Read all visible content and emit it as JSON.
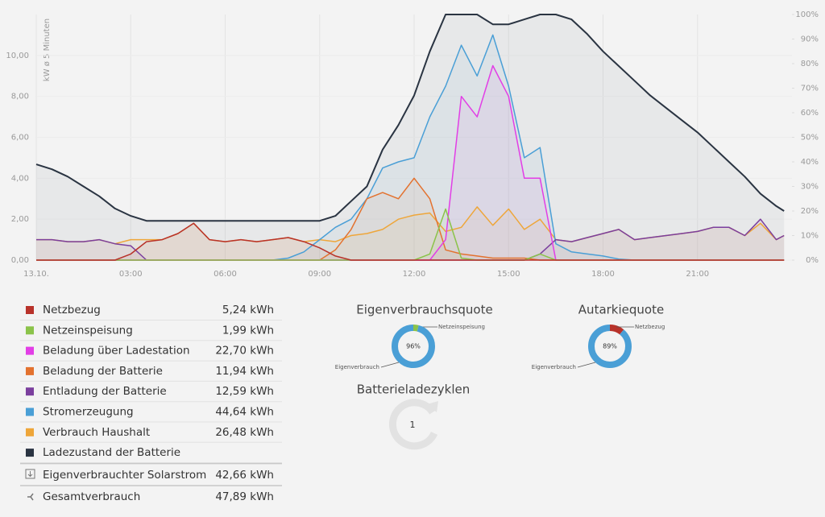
{
  "chart_data": [
    {
      "type": "line",
      "y_label": "kW ø 5 Minuten",
      "x": [
        0,
        0.5,
        1,
        1.5,
        2,
        2.5,
        3,
        3.5,
        4,
        4.5,
        5,
        5.5,
        6,
        6.5,
        7,
        7.5,
        8,
        8.5,
        9,
        9.5,
        10,
        10.5,
        11,
        11.5,
        12,
        12.5,
        13,
        13.5,
        14,
        14.5,
        15,
        15.5,
        16,
        16.5,
        17,
        17.5,
        18,
        18.5,
        19,
        19.5,
        20,
        20.5,
        21,
        21.5,
        22,
        22.5,
        23,
        23.5,
        23.75
      ],
      "xlim": [
        0,
        24
      ],
      "xticks": [
        {
          "value": 0,
          "label": "13.10."
        },
        {
          "value": 3,
          "label": "03:00"
        },
        {
          "value": 6,
          "label": "06:00"
        },
        {
          "value": 9,
          "label": "09:00"
        },
        {
          "value": 12,
          "label": "12:00"
        },
        {
          "value": 15,
          "label": "15:00"
        },
        {
          "value": 18,
          "label": "18:00"
        },
        {
          "value": 21,
          "label": "21:00"
        }
      ],
      "ylim": [
        0,
        12
      ],
      "yticks": [
        {
          "value": 0,
          "label": "0,00"
        },
        {
          "value": 2,
          "label": "2,00"
        },
        {
          "value": 4,
          "label": "4,00"
        },
        {
          "value": 6,
          "label": "6,00"
        },
        {
          "value": 8,
          "label": "8,00"
        },
        {
          "value": 10,
          "label": "10,00"
        }
      ],
      "y2lim": [
        0,
        100
      ],
      "y2ticks": [
        {
          "value": 0,
          "label": "0%"
        },
        {
          "value": 10,
          "label": "10%"
        },
        {
          "value": 20,
          "label": "20%"
        },
        {
          "value": 30,
          "label": "30%"
        },
        {
          "value": 40,
          "label": "40%"
        },
        {
          "value": 50,
          "label": "50%"
        },
        {
          "value": 60,
          "label": "60%"
        },
        {
          "value": 70,
          "label": "70%"
        },
        {
          "value": 80,
          "label": "80%"
        },
        {
          "value": 90,
          "label": "90%"
        },
        {
          "value": 100,
          "label": "100%"
        }
      ],
      "grid": true,
      "series": [
        {
          "name": "Netzbezug",
          "color": "#b8322a",
          "total": "5,24 kWh",
          "values": [
            0,
            0,
            0,
            0,
            0,
            0,
            0.3,
            0.9,
            1.0,
            1.3,
            1.8,
            1.0,
            0.9,
            1.0,
            0.9,
            1.0,
            1.1,
            0.9,
            0.6,
            0.2,
            0,
            0,
            0,
            0,
            0,
            0,
            0,
            0,
            0,
            0,
            0,
            0,
            0,
            0,
            0,
            0,
            0,
            0,
            0,
            0,
            0,
            0,
            0,
            0,
            0,
            0,
            0,
            0,
            0
          ]
        },
        {
          "name": "Netzeinspeisung",
          "color": "#8bc34a",
          "total": "1,99 kWh",
          "values": [
            0,
            0,
            0,
            0,
            0,
            0,
            0,
            0,
            0,
            0,
            0,
            0,
            0,
            0,
            0,
            0,
            0,
            0,
            0,
            0,
            0,
            0,
            0,
            0,
            0,
            0.3,
            2.5,
            0.1,
            0,
            0,
            0,
            0,
            0.3,
            0,
            0,
            0,
            0,
            0,
            0,
            0,
            0,
            0,
            0,
            0,
            0,
            0,
            0,
            0,
            0
          ]
        },
        {
          "name": "Beladung über Ladestation",
          "color": "#e23ee6",
          "total": "22,70 kWh",
          "values": [
            0,
            0,
            0,
            0,
            0,
            0,
            0,
            0,
            0,
            0,
            0,
            0,
            0,
            0,
            0,
            0,
            0,
            0,
            0,
            0,
            0,
            0,
            0,
            0,
            0,
            0,
            1.0,
            8.0,
            7.0,
            9.5,
            8.0,
            4.0,
            4.0,
            0,
            0,
            0,
            0,
            0,
            0,
            0,
            0,
            0,
            0,
            0,
            0,
            0,
            0,
            0,
            0
          ]
        },
        {
          "name": "Beladung der Batterie",
          "color": "#e3722f",
          "total": "11,94 kWh",
          "values": [
            0,
            0,
            0,
            0,
            0,
            0,
            0,
            0,
            0,
            0,
            0,
            0,
            0,
            0,
            0,
            0,
            0,
            0,
            0,
            0.5,
            1.5,
            3.0,
            3.3,
            3.0,
            4.0,
            3.0,
            0.5,
            0.3,
            0.2,
            0.1,
            0.1,
            0.1,
            0,
            0,
            0,
            0,
            0,
            0,
            0,
            0,
            0,
            0,
            0,
            0,
            0,
            0,
            0,
            0,
            0
          ]
        },
        {
          "name": "Entladung der Batterie",
          "color": "#7b3f9e",
          "total": "12,59 kWh",
          "values": [
            1.0,
            1.0,
            0.9,
            0.9,
            1.0,
            0.8,
            0.7,
            0,
            0,
            0,
            0,
            0,
            0,
            0,
            0,
            0,
            0,
            0,
            0,
            0,
            0,
            0,
            0,
            0,
            0,
            0,
            0,
            0,
            0,
            0,
            0,
            0,
            0.3,
            1.0,
            0.9,
            1.1,
            1.3,
            1.5,
            1.0,
            1.1,
            1.2,
            1.3,
            1.4,
            1.6,
            1.6,
            1.2,
            2.0,
            1.0,
            1.2
          ]
        },
        {
          "name": "Stromerzeugung",
          "color": "#4a9fd6",
          "total": "44,64 kWh",
          "values": [
            0,
            0,
            0,
            0,
            0,
            0,
            0,
            0,
            0,
            0,
            0,
            0,
            0,
            0,
            0,
            0,
            0.1,
            0.4,
            1.0,
            1.6,
            2.0,
            3.0,
            4.5,
            4.8,
            5.0,
            7.0,
            8.5,
            10.5,
            9.0,
            11.0,
            8.5,
            5.0,
            5.5,
            0.8,
            0.4,
            0.3,
            0.2,
            0.05,
            0,
            0,
            0,
            0,
            0,
            0,
            0,
            0,
            0,
            0,
            0
          ]
        },
        {
          "name": "Verbrauch Haushalt",
          "color": "#eea63a",
          "total": "26,48 kWh",
          "values": [
            1.0,
            1.0,
            0.9,
            0.9,
            1.0,
            0.8,
            1.0,
            1.0,
            1.0,
            1.3,
            1.8,
            1.0,
            0.9,
            1.0,
            0.9,
            1.0,
            1.1,
            0.9,
            1.0,
            0.9,
            1.2,
            1.3,
            1.5,
            2.0,
            2.2,
            2.3,
            1.4,
            1.6,
            2.6,
            1.7,
            2.5,
            1.5,
            2.0,
            1.0,
            0.9,
            1.1,
            1.3,
            1.5,
            1.0,
            1.1,
            1.2,
            1.3,
            1.4,
            1.6,
            1.6,
            1.2,
            1.8,
            1.0,
            1.2
          ]
        },
        {
          "name": "Ladezustand der Batterie",
          "color": "#2a3442",
          "axis": "y2",
          "values": [
            39,
            37,
            34,
            30,
            26,
            21,
            18,
            16,
            16,
            16,
            16,
            16,
            16,
            16,
            16,
            16,
            16,
            16,
            16,
            18,
            24,
            30,
            45,
            55,
            67,
            85,
            100,
            100,
            100,
            96,
            96,
            98,
            100,
            100,
            98,
            92,
            85,
            79,
            73,
            67,
            62,
            57,
            52,
            46,
            40,
            34,
            27,
            22,
            20
          ]
        }
      ]
    },
    {
      "type": "pie",
      "title": "Eigenverbrauchsquote",
      "categories": [
        "Netzeinspeisung",
        "Eigenverbrauch"
      ],
      "values": [
        4,
        96
      ],
      "colors": [
        "#8bc34a",
        "#4a9fd6"
      ],
      "center_label": "96%"
    },
    {
      "type": "pie",
      "title": "Autarkiequote",
      "categories": [
        "Netzbezug",
        "Eigenverbrauch"
      ],
      "values": [
        11,
        89
      ],
      "colors": [
        "#b8322a",
        "#4a9fd6"
      ],
      "center_label": "89%"
    }
  ],
  "summary": [
    {
      "label": "Eigenverbrauchter Solarstrom",
      "value": "42,66 kWh"
    },
    {
      "label": "Gesamtverbrauch",
      "value": "47,89 kWh"
    }
  ],
  "battery_cycles": {
    "title": "Batterieladezyklen",
    "value": 1
  }
}
